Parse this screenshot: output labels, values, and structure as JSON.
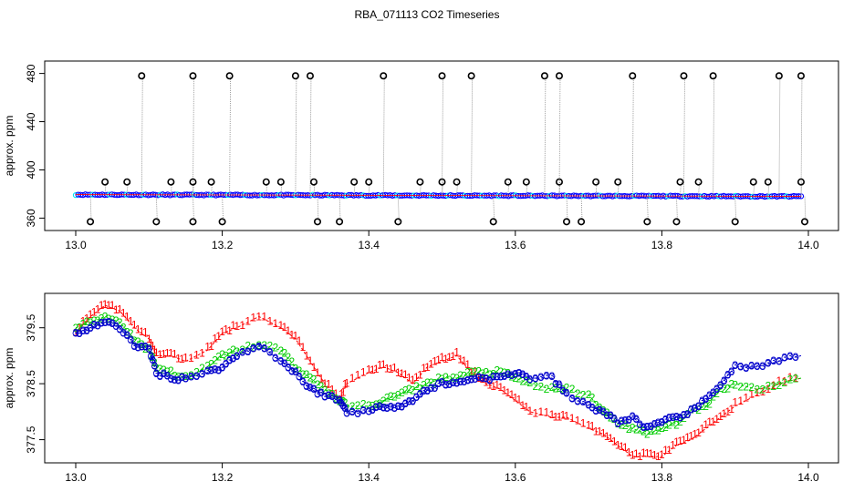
{
  "title": "RBA_071113  CO2 Timeseries",
  "colors": {
    "ref": "#000000",
    "grey": "#8a8a8a",
    "blue": "#0000ff",
    "cyan": "#00e5ee",
    "red": "#ff0000",
    "green": "#00cc00",
    "navy": "#0000cc"
  },
  "chart_data": [
    {
      "type": "scatter",
      "title": "",
      "xlabel": "",
      "ylabel": "approx. ppm",
      "xlim": [
        13.0,
        14.0
      ],
      "ylim": [
        355,
        485
      ],
      "x_ticks": [
        "13.0",
        "13.2",
        "13.4",
        "13.6",
        "13.8",
        "14.0"
      ],
      "y_ticks": [
        "360",
        "400",
        "440",
        "480"
      ],
      "grid": false,
      "baseline_series": {
        "name": "",
        "x_start": 13.0,
        "x_end": 13.99,
        "y_start": 379.5,
        "y_end": 378.0
      },
      "spikes_high": [
        13.09,
        13.16,
        13.21,
        13.3,
        13.32,
        13.42,
        13.5,
        13.54,
        13.64,
        13.66,
        13.76,
        13.83,
        13.87,
        13.96,
        13.99
      ],
      "spikes_high_value": 478,
      "spikes_mid": [
        13.04,
        13.07,
        13.13,
        13.16,
        13.185,
        13.26,
        13.28,
        13.325,
        13.38,
        13.4,
        13.47,
        13.5,
        13.52,
        13.59,
        13.615,
        13.66,
        13.71,
        13.74,
        13.825,
        13.85,
        13.925,
        13.945,
        13.99
      ],
      "spikes_mid_value": 390,
      "spikes_low": [
        13.02,
        13.11,
        13.16,
        13.2,
        13.33,
        13.36,
        13.44,
        13.57,
        13.67,
        13.69,
        13.78,
        13.82,
        13.9,
        13.995
      ],
      "spikes_low_value": 357
    },
    {
      "type": "scatter",
      "title": "",
      "xlabel": "",
      "ylabel": "approx. ppm",
      "xlim": [
        13.0,
        14.0
      ],
      "ylim": [
        377.2,
        380.0
      ],
      "x_ticks": [
        "13.0",
        "13.2",
        "13.4",
        "13.6",
        "13.8",
        "14.0"
      ],
      "y_ticks": [
        "377.5",
        "378.5",
        "379.5"
      ],
      "grid": false,
      "marker_labels": [
        "1",
        "2",
        "3"
      ],
      "series": [
        {
          "name": "",
          "marker": "1",
          "x": [
            13.0,
            13.02,
            13.04,
            13.06,
            13.08,
            13.1,
            13.11,
            13.13,
            13.15,
            13.18,
            13.2,
            13.22,
            13.25,
            13.28,
            13.3,
            13.32,
            13.34,
            13.36,
            13.37,
            13.4,
            13.42,
            13.44,
            13.46,
            13.48,
            13.5,
            13.52,
            13.54,
            13.56,
            13.58,
            13.6,
            13.62,
            13.65,
            13.67,
            13.7,
            13.72,
            13.74,
            13.76,
            13.78,
            13.8,
            13.82,
            13.84,
            13.86,
            13.88,
            13.9,
            13.93,
            13.96,
            13.99
          ],
          "values": [
            379.4,
            379.7,
            379.9,
            379.8,
            379.5,
            379.3,
            379.0,
            379.0,
            378.9,
            379.1,
            379.4,
            379.5,
            379.7,
            379.5,
            379.3,
            378.9,
            378.5,
            378.2,
            378.5,
            378.7,
            378.8,
            378.7,
            378.5,
            378.8,
            378.9,
            379.0,
            378.7,
            378.5,
            378.4,
            378.2,
            378.0,
            377.9,
            377.9,
            377.7,
            377.6,
            377.4,
            377.2,
            377.2,
            377.2,
            377.4,
            377.5,
            377.7,
            377.9,
            378.1,
            378.3,
            378.5,
            378.6
          ]
        },
        {
          "name": "",
          "marker": "2",
          "x": [
            13.0,
            13.02,
            13.04,
            13.06,
            13.08,
            13.1,
            13.11,
            13.13,
            13.15,
            13.18,
            13.2,
            13.22,
            13.25,
            13.28,
            13.3,
            13.32,
            13.34,
            13.36,
            13.37,
            13.4,
            13.42,
            13.44,
            13.46,
            13.48,
            13.5,
            13.52,
            13.54,
            13.56,
            13.58,
            13.6,
            13.62,
            13.65,
            13.67,
            13.7,
            13.72,
            13.74,
            13.76,
            13.78,
            13.8,
            13.82,
            13.84,
            13.86,
            13.88,
            13.9,
            13.93,
            13.96,
            13.99
          ],
          "values": [
            379.5,
            379.6,
            379.7,
            379.6,
            379.3,
            379.1,
            378.8,
            378.7,
            378.6,
            378.8,
            379.0,
            379.1,
            379.2,
            379.1,
            378.8,
            378.6,
            378.4,
            378.2,
            378.1,
            378.1,
            378.2,
            378.3,
            378.4,
            378.5,
            378.6,
            378.6,
            378.7,
            378.7,
            378.7,
            378.6,
            378.5,
            378.4,
            378.4,
            378.3,
            378.0,
            377.8,
            377.7,
            377.6,
            377.7,
            377.8,
            378.0,
            378.1,
            378.4,
            378.5,
            378.4,
            378.5,
            378.6
          ]
        },
        {
          "name": "",
          "marker": "3",
          "x": [
            13.0,
            13.02,
            13.04,
            13.06,
            13.08,
            13.1,
            13.11,
            13.13,
            13.15,
            13.18,
            13.2,
            13.22,
            13.25,
            13.28,
            13.3,
            13.32,
            13.34,
            13.36,
            13.37,
            13.4,
            13.42,
            13.44,
            13.46,
            13.48,
            13.5,
            13.52,
            13.54,
            13.56,
            13.58,
            13.6,
            13.62,
            13.65,
            13.67,
            13.7,
            13.72,
            13.74,
            13.76,
            13.78,
            13.8,
            13.82,
            13.84,
            13.86,
            13.88,
            13.9,
            13.93,
            13.96,
            13.99
          ],
          "values": [
            379.4,
            379.5,
            379.6,
            379.5,
            379.2,
            379.1,
            378.7,
            378.6,
            378.6,
            378.7,
            378.8,
            379.0,
            379.2,
            378.9,
            378.7,
            378.4,
            378.3,
            378.2,
            378.0,
            378.0,
            378.1,
            378.1,
            378.2,
            378.4,
            378.5,
            378.5,
            378.6,
            378.6,
            378.6,
            378.7,
            378.6,
            378.6,
            378.3,
            378.1,
            378.0,
            377.8,
            377.9,
            377.7,
            377.8,
            377.9,
            378.0,
            378.2,
            378.5,
            378.8,
            378.8,
            378.9,
            379.0
          ]
        }
      ]
    }
  ]
}
